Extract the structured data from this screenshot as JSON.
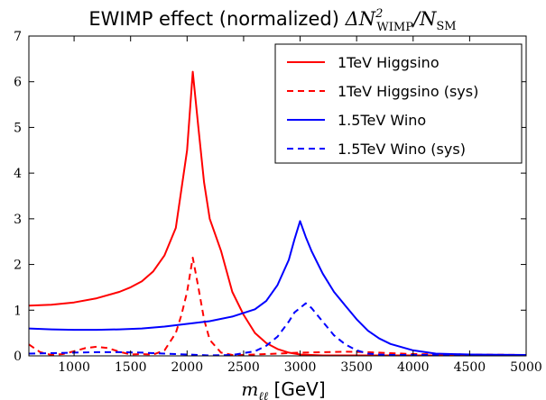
{
  "chart_data": {
    "type": "line",
    "title_prefix": "EWIMP effect (normalized) ",
    "title_math": "ΔN²WIMP/NSM",
    "title_parts": {
      "delta_n": "ΔN",
      "sup": "2",
      "sub1": "WIMP",
      "slash_n": "/N",
      "sub2": "SM"
    },
    "xlabel_math": "m",
    "xlabel_sub": "ℓℓ",
    "xlabel_unit": " [GeV]",
    "xlim": [
      600,
      5000
    ],
    "ylim": [
      0,
      7
    ],
    "xticks": [
      1000,
      1500,
      2000,
      2500,
      3000,
      3500,
      4000,
      4500,
      5000
    ],
    "yticks": [
      0,
      1,
      2,
      3,
      4,
      5,
      6,
      7
    ],
    "grid": false,
    "legend_position": "top-right",
    "series": [
      {
        "name": "1TeV Higgsino",
        "color": "#ff0000",
        "style": "solid",
        "x": [
          600,
          800,
          1000,
          1200,
          1400,
          1500,
          1600,
          1700,
          1800,
          1900,
          2000,
          2050,
          2100,
          2150,
          2200,
          2300,
          2400,
          2500,
          2600,
          2700,
          2800,
          2900,
          3000,
          3200,
          3500,
          4000,
          5000
        ],
        "y": [
          1.1,
          1.12,
          1.17,
          1.26,
          1.4,
          1.5,
          1.63,
          1.85,
          2.2,
          2.8,
          4.5,
          6.22,
          5.0,
          3.8,
          3.0,
          2.3,
          1.4,
          0.9,
          0.5,
          0.28,
          0.15,
          0.07,
          0.03,
          0.01,
          0.01,
          0.01,
          0.01
        ]
      },
      {
        "name": "1TeV Higgsino (sys)",
        "color": "#ff0000",
        "style": "dashed",
        "x": [
          600,
          700,
          800,
          900,
          1000,
          1100,
          1200,
          1300,
          1400,
          1500,
          1600,
          1700,
          1800,
          1900,
          1950,
          2000,
          2050,
          2100,
          2150,
          2200,
          2300,
          2400,
          2500,
          2600,
          2800,
          3000,
          3200,
          3400,
          3600,
          3800,
          4000,
          4500,
          5000
        ],
        "y": [
          0.25,
          0.08,
          0.02,
          0.04,
          0.1,
          0.17,
          0.2,
          0.17,
          0.09,
          0.03,
          0.04,
          0.03,
          0.12,
          0.5,
          0.9,
          1.4,
          2.15,
          1.5,
          0.8,
          0.35,
          0.07,
          0.02,
          0.02,
          0.03,
          0.05,
          0.07,
          0.08,
          0.09,
          0.08,
          0.06,
          0.04,
          0.03,
          0.02
        ]
      },
      {
        "name": "1.5TeV Wino",
        "color": "#0000ff",
        "style": "solid",
        "x": [
          600,
          800,
          1000,
          1200,
          1400,
          1600,
          1800,
          2000,
          2200,
          2400,
          2600,
          2700,
          2800,
          2900,
          2950,
          3000,
          3050,
          3100,
          3150,
          3200,
          3300,
          3400,
          3500,
          3600,
          3700,
          3800,
          4000,
          4200,
          4500,
          5000
        ],
        "y": [
          0.6,
          0.58,
          0.57,
          0.57,
          0.58,
          0.6,
          0.64,
          0.7,
          0.76,
          0.86,
          1.02,
          1.2,
          1.55,
          2.1,
          2.55,
          2.95,
          2.6,
          2.3,
          2.05,
          1.8,
          1.4,
          1.1,
          0.8,
          0.55,
          0.38,
          0.26,
          0.12,
          0.05,
          0.03,
          0.02
        ]
      },
      {
        "name": "1.5TeV Wino (sys)",
        "color": "#0000ff",
        "style": "dashed",
        "x": [
          600,
          800,
          1000,
          1200,
          1400,
          1600,
          1800,
          2000,
          2200,
          2400,
          2600,
          2700,
          2800,
          2900,
          2950,
          3000,
          3050,
          3100,
          3200,
          3300,
          3400,
          3500,
          3600,
          3700,
          3800,
          4000,
          4500,
          5000
        ],
        "y": [
          0.05,
          0.06,
          0.07,
          0.08,
          0.08,
          0.07,
          0.05,
          0.03,
          0.01,
          0.02,
          0.1,
          0.22,
          0.42,
          0.75,
          0.95,
          1.05,
          1.15,
          1.05,
          0.75,
          0.45,
          0.25,
          0.12,
          0.05,
          0.03,
          0.02,
          0.02,
          0.02,
          0.02
        ]
      }
    ]
  }
}
